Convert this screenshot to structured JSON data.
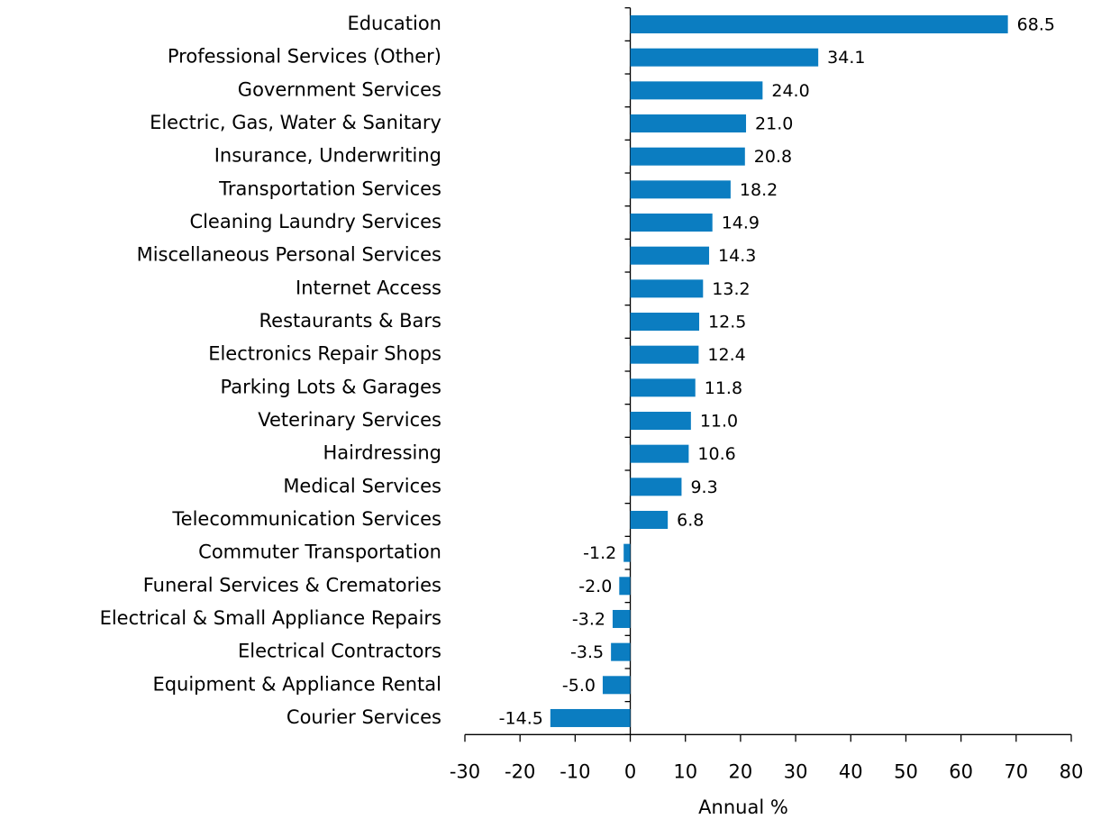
{
  "chart_data": {
    "type": "barh",
    "categories": [
      "Education",
      "Professional Services (Other)",
      "Government Services",
      "Electric, Gas, Water & Sanitary",
      "Insurance, Underwriting",
      "Transportation Services",
      "Cleaning Laundry Services",
      "Miscellaneous Personal Services",
      "Internet Access",
      "Restaurants & Bars",
      "Electronics Repair Shops",
      "Parking Lots & Garages",
      "Veterinary Services",
      "Hairdressing",
      "Medical Services",
      "Telecommunication Services",
      "Commuter Transportation",
      "Funeral Services & Crematories",
      "Electrical & Small Appliance Repairs",
      "Electrical Contractors",
      "Equipment & Appliance Rental",
      "Courier Services"
    ],
    "values": [
      68.5,
      34.1,
      24.0,
      21.0,
      20.8,
      18.2,
      14.9,
      14.3,
      13.2,
      12.5,
      12.4,
      11.8,
      11.0,
      10.6,
      9.3,
      6.8,
      -1.2,
      -2.0,
      -3.2,
      -3.5,
      -5.0,
      -14.5
    ],
    "value_labels": [
      "68.5",
      "34.1",
      "24.0",
      "21.0",
      "20.8",
      "18.2",
      "14.9",
      "14.3",
      "13.2",
      "12.5",
      "12.4",
      "11.8",
      "11.0",
      "10.6",
      "9.3",
      "6.8",
      "-1.2",
      "-2.0",
      "-3.2",
      "-3.5",
      "-5.0",
      "-14.5"
    ],
    "color": "#0b7dc1",
    "xlabel": "Annual %",
    "xlim": [
      -30,
      80
    ],
    "xticks": [
      -30,
      -20,
      -10,
      0,
      10,
      20,
      30,
      40,
      50,
      60,
      70,
      80
    ],
    "grid": false
  }
}
